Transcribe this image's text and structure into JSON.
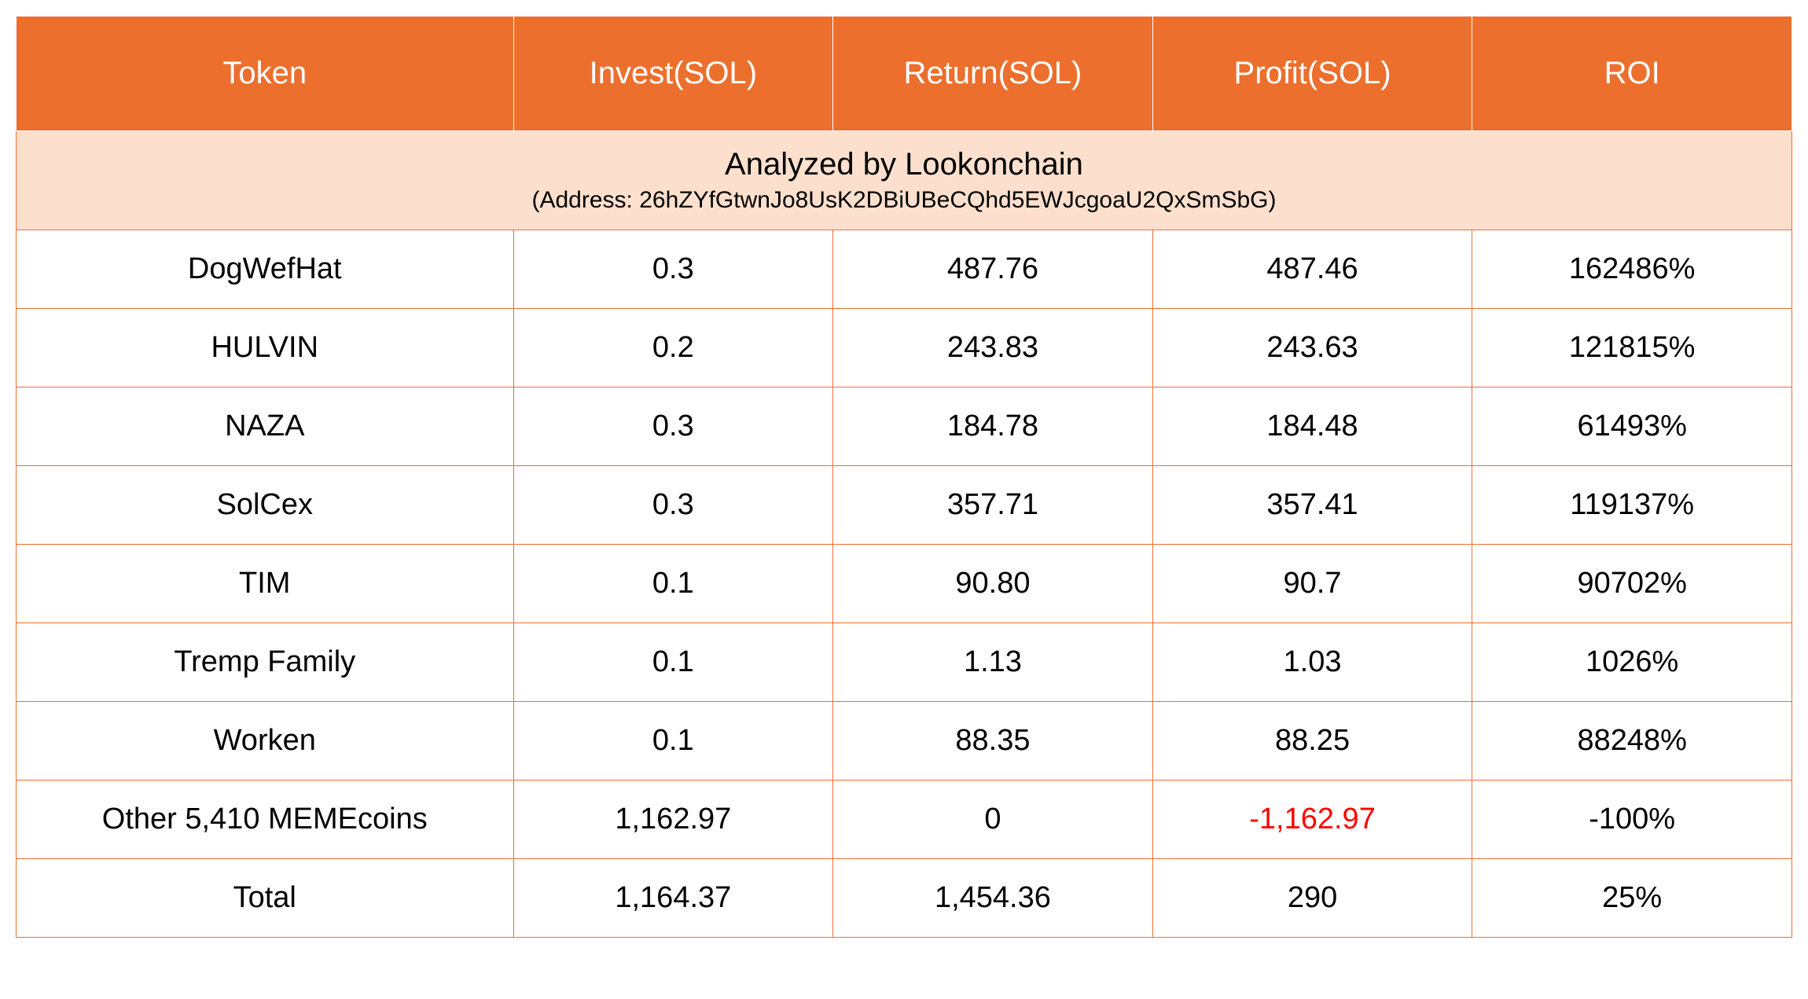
{
  "table": {
    "type": "table",
    "header_bg_color": "#ec6f2d",
    "header_text_color": "#ffffff",
    "analyzed_bg_color": "#fce0cd",
    "row_bg_color": "#ffffff",
    "border_color": "#ec6f2d",
    "text_color": "#000000",
    "negative_color": "#ff0000",
    "header_fontsize": 40,
    "body_fontsize": 38,
    "analyzed_title_fontsize": 40,
    "analyzed_address_fontsize": 30,
    "columns": [
      {
        "label": "Token",
        "width": "28%"
      },
      {
        "label": "Invest(SOL)",
        "width": "18%"
      },
      {
        "label": "Return(SOL)",
        "width": "18%"
      },
      {
        "label": "Profit(SOL)",
        "width": "18%"
      },
      {
        "label": "ROI",
        "width": "18%"
      }
    ],
    "analyzed": {
      "title": "Analyzed by Lookonchain",
      "address": "(Address: 26hZYfGtwnJo8UsK2DBiUBeCQhd5EWJcgoaU2QxSmSbG)"
    },
    "rows": [
      {
        "token": "DogWefHat",
        "invest": "0.3",
        "return": "487.76",
        "profit": "487.46",
        "roi": "162486%",
        "profit_negative": false
      },
      {
        "token": "HULVIN",
        "invest": "0.2",
        "return": "243.83",
        "profit": "243.63",
        "roi": "121815%",
        "profit_negative": false
      },
      {
        "token": "NAZA",
        "invest": "0.3",
        "return": "184.78",
        "profit": "184.48",
        "roi": "61493%",
        "profit_negative": false
      },
      {
        "token": "SolCex",
        "invest": "0.3",
        "return": "357.71",
        "profit": "357.41",
        "roi": "119137%",
        "profit_negative": false
      },
      {
        "token": "TIM",
        "invest": "0.1",
        "return": "90.80",
        "profit": "90.7",
        "roi": "90702%",
        "profit_negative": false
      },
      {
        "token": "Tremp Family",
        "invest": "0.1",
        "return": "1.13",
        "profit": "1.03",
        "roi": "1026%",
        "profit_negative": false
      },
      {
        "token": "Worken",
        "invest": "0.1",
        "return": "88.35",
        "profit": "88.25",
        "roi": "88248%",
        "profit_negative": false
      },
      {
        "token": "Other 5,410 MEMEcoins",
        "invest": "1,162.97",
        "return": "0",
        "profit": "-1,162.97",
        "roi": "-100%",
        "profit_negative": true
      },
      {
        "token": "Total",
        "invest": "1,164.37",
        "return": "1,454.36",
        "profit": "290",
        "roi": "25%",
        "profit_negative": false
      }
    ]
  }
}
